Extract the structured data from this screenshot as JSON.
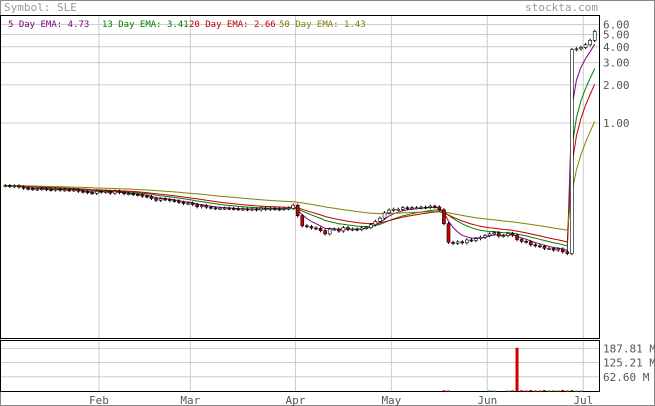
{
  "header": {
    "symbol_label": "Symbol: SLE",
    "site": "stockta.com"
  },
  "legend": [
    {
      "label": "5 Day EMA: 4.73",
      "color": "#800080"
    },
    {
      "label": "13 Day EMA: 3.41",
      "color": "#008000"
    },
    {
      "label": "20 Day EMA: 2.66",
      "color": "#c00000"
    },
    {
      "label": "50 Day EMA: 1.43",
      "color": "#808000"
    }
  ],
  "chart_data": {
    "type": "candlestick",
    "symbol": "SLE",
    "yscale": "log",
    "ylim": [
      0.02,
      7
    ],
    "price_ticks": [
      {
        "value": 6.0,
        "label": "6.00"
      },
      {
        "value": 5.0,
        "label": "5.00"
      },
      {
        "value": 4.0,
        "label": "4.00"
      },
      {
        "value": 3.0,
        "label": "3.00"
      },
      {
        "value": 2.0,
        "label": "2.00"
      },
      {
        "value": 1.0,
        "label": "1.00"
      }
    ],
    "volume_ylim": [
      0,
      220
    ],
    "volume_ticks": [
      {
        "value": 187.81,
        "label": "187.81 M"
      },
      {
        "value": 125.21,
        "label": "125.21 M"
      },
      {
        "value": 62.6,
        "label": "62.60 M"
      }
    ],
    "months": [
      "Feb",
      "Mar",
      "Apr",
      "May",
      "Jun",
      "Jul"
    ],
    "month_start_index": [
      21,
      41,
      64,
      85,
      106,
      127
    ],
    "num_bars": 130,
    "close": [
      0.32,
      0.316,
      0.318,
      0.312,
      0.305,
      0.302,
      0.3,
      0.3,
      0.302,
      0.298,
      0.296,
      0.3,
      0.295,
      0.296,
      0.294,
      0.296,
      0.289,
      0.286,
      0.282,
      0.278,
      0.289,
      0.285,
      0.288,
      0.279,
      0.289,
      0.282,
      0.276,
      0.276,
      0.272,
      0.271,
      0.264,
      0.262,
      0.253,
      0.245,
      0.251,
      0.249,
      0.244,
      0.242,
      0.236,
      0.231,
      0.233,
      0.227,
      0.218,
      0.222,
      0.216,
      0.213,
      0.212,
      0.212,
      0.212,
      0.211,
      0.21,
      0.208,
      0.209,
      0.207,
      0.209,
      0.206,
      0.212,
      0.208,
      0.211,
      0.209,
      0.208,
      0.211,
      0.212,
      0.224,
      0.185,
      0.154,
      0.152,
      0.148,
      0.147,
      0.141,
      0.133,
      0.145,
      0.145,
      0.14,
      0.149,
      0.144,
      0.145,
      0.144,
      0.148,
      0.149,
      0.157,
      0.167,
      0.177,
      0.195,
      0.205,
      0.208,
      0.208,
      0.214,
      0.211,
      0.214,
      0.214,
      0.216,
      0.215,
      0.22,
      0.217,
      0.206,
      0.16,
      0.114,
      0.112,
      0.115,
      0.113,
      0.119,
      0.118,
      0.122,
      0.125,
      0.129,
      0.133,
      0.136,
      0.128,
      0.129,
      0.134,
      0.13,
      0.12,
      0.116,
      0.115,
      0.109,
      0.107,
      0.106,
      0.102,
      0.102,
      0.099,
      0.101,
      0.096,
      0.093,
      3.8,
      3.85,
      3.95,
      4.15,
      4.5,
      5.3
    ],
    "volume": [
      1,
      0.8,
      0.5,
      0.6,
      0.4,
      0.3,
      0.3,
      0.4,
      0.3,
      0.2,
      0.2,
      0.3,
      0.2,
      0.2,
      0.2,
      0.3,
      0.3,
      0.2,
      0.4,
      0.3,
      0.2,
      0.3,
      0.4,
      0.2,
      0.2,
      0.3,
      0.2,
      0.2,
      0.3,
      0.3,
      0.5,
      0.2,
      0.3,
      0.8,
      0.3,
      0.3,
      0.2,
      0.3,
      0.2,
      0.3,
      0.2,
      0.4,
      0.5,
      0.3,
      0.4,
      0.2,
      0.2,
      0.2,
      0.2,
      0.2,
      0.2,
      0.3,
      0.2,
      0.2,
      0.3,
      0.2,
      0.2,
      0.3,
      0.2,
      0.2,
      0.2,
      0.3,
      0.4,
      1.2,
      0.8,
      0.5,
      0.4,
      0.4,
      0.4,
      0.3,
      0.4,
      0.4,
      0.3,
      0.3,
      0.3,
      0.3,
      0.3,
      0.3,
      0.3,
      0.4,
      0.4,
      0.5,
      0.5,
      0.5,
      0.4,
      0.4,
      0.3,
      0.3,
      0.3,
      0.3,
      0.3,
      0.3,
      0.4,
      0.4,
      0.6,
      1.2,
      3,
      2,
      1,
      1,
      1,
      1,
      0.8,
      1,
      1,
      1,
      2,
      1.5,
      1,
      1,
      1.8,
      2.5,
      190,
      3,
      2,
      4,
      2,
      2,
      4,
      2,
      2,
      2,
      5,
      2,
      4,
      1.5,
      1.5,
      1,
      1,
      1
    ],
    "ema_periods": [
      5,
      13,
      20,
      50
    ],
    "ema_colors": [
      "#800080",
      "#008000",
      "#c00000",
      "#808000"
    ],
    "grid": true
  }
}
